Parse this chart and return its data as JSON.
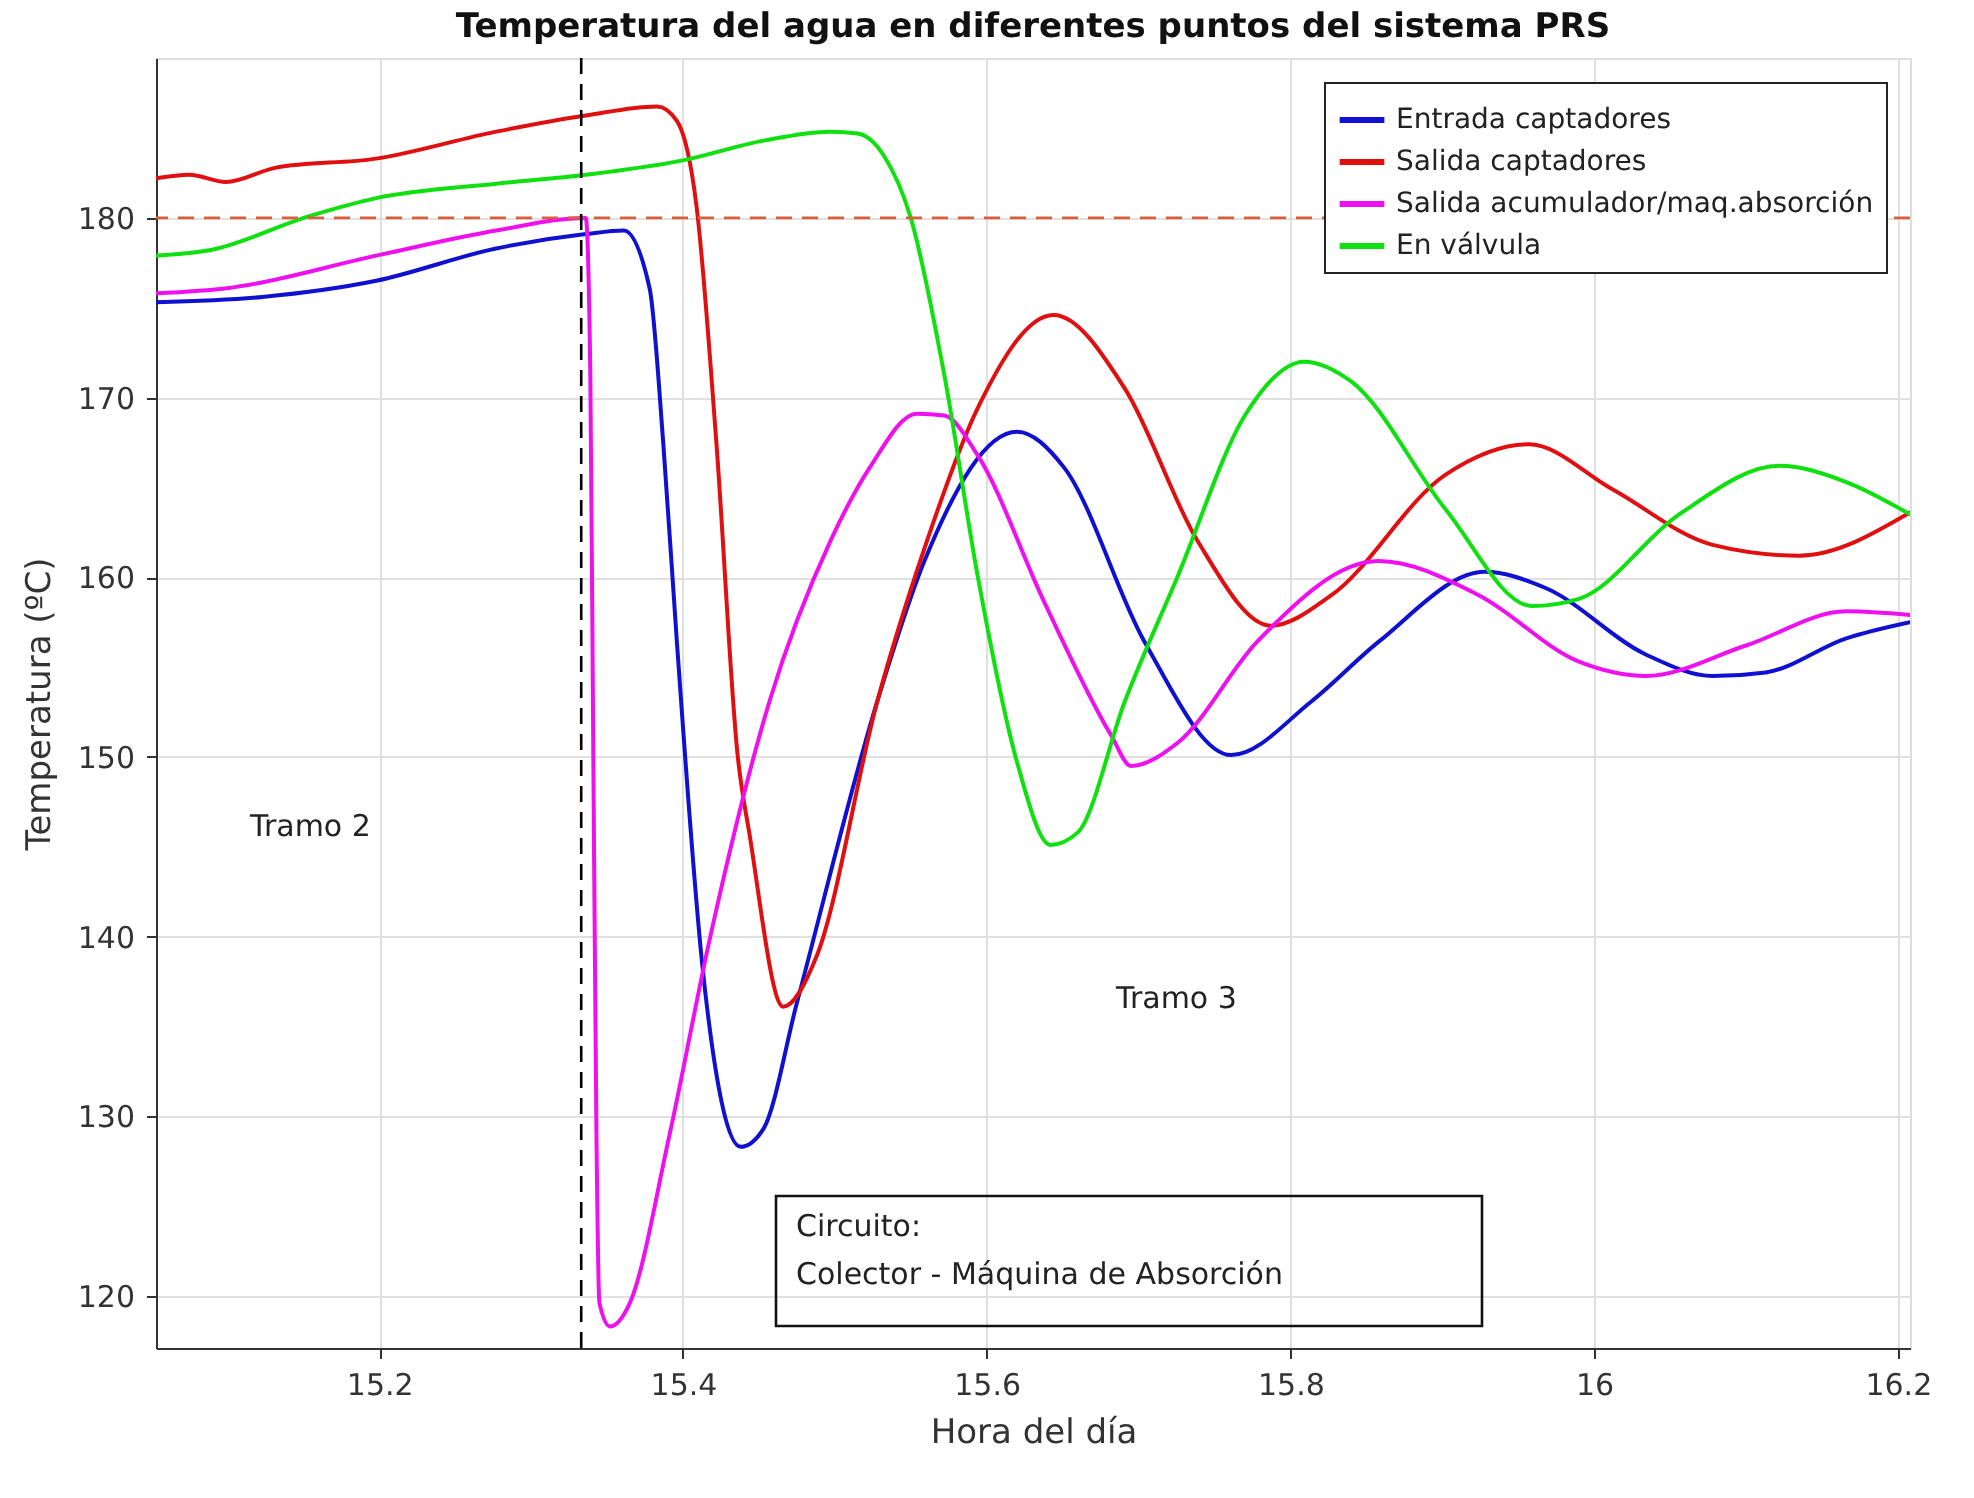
{
  "chart_data": {
    "type": "line",
    "title": "Temperatura del agua en diferentes puntos del sistema PRS",
    "xlabel": "Hora del día",
    "ylabel": "Temperatura (ºC)",
    "xlim": [
      15.053,
      16.208
    ],
    "ylim": [
      117.1,
      188.9
    ],
    "xticks": [
      15.2,
      15.4,
      15.6,
      15.8,
      16,
      16.2
    ],
    "yticks": [
      120,
      130,
      140,
      150,
      160,
      170,
      180
    ],
    "grid": true,
    "legend": "top right",
    "line_style": "solid",
    "marker": "none",
    "series": [
      {
        "name": "Entrada captadores",
        "color": "#1010d0",
        "x": [
          15.053,
          15.123,
          15.198,
          15.277,
          15.336,
          15.361,
          15.378,
          15.387,
          15.396,
          15.413,
          15.438,
          15.453,
          15.475,
          15.528,
          15.559,
          15.62,
          15.651,
          15.704,
          15.761,
          15.814,
          15.858,
          15.928,
          15.968,
          16.034,
          16.078,
          16.113,
          16.166,
          16.208
        ],
        "values": [
          175.3,
          175.6,
          176.5,
          178.3,
          179.1,
          179.3,
          176.1,
          167.5,
          156.4,
          138.2,
          128.3,
          129.3,
          136.3,
          153.1,
          160.9,
          168.1,
          166.1,
          156.4,
          150.1,
          153.1,
          156.4,
          160.3,
          159.4,
          155.7,
          154.5,
          154.7,
          156.6,
          157.5
        ]
      },
      {
        "name": "Salida captadores",
        "color": "#e01010",
        "x": [
          15.053,
          15.075,
          15.099,
          15.132,
          15.198,
          15.277,
          15.336,
          15.383,
          15.396,
          15.409,
          15.422,
          15.436,
          15.444,
          15.466,
          15.488,
          15.528,
          15.559,
          15.594,
          15.644,
          15.691,
          15.739,
          15.787,
          15.827,
          15.902,
          15.957,
          16.012,
          16.078,
          16.135,
          16.208
        ],
        "values": [
          182.2,
          182.4,
          182.0,
          182.8,
          183.3,
          184.8,
          185.7,
          186.2,
          185.4,
          180.6,
          167.5,
          150.1,
          145.6,
          136.1,
          138.9,
          153.1,
          161.6,
          169.4,
          174.6,
          170.5,
          162.0,
          157.3,
          159.0,
          165.7,
          167.4,
          164.9,
          161.8,
          161.2,
          163.6
        ]
      },
      {
        "name": "Salida acumulador/maq.absorción",
        "color": "#ee10ee",
        "x": [
          15.053,
          15.101,
          15.198,
          15.277,
          15.336,
          15.339,
          15.341,
          15.343,
          15.345,
          15.352,
          15.365,
          15.391,
          15.418,
          15.457,
          15.497,
          15.523,
          15.554,
          15.572,
          15.594,
          15.638,
          15.682,
          15.695,
          15.726,
          15.778,
          15.858,
          15.924,
          15.99,
          16.034,
          16.1,
          16.166,
          16.208
        ],
        "values": [
          175.8,
          176.1,
          177.9,
          179.3,
          180.0,
          171.3,
          149.7,
          129.3,
          119.6,
          118.3,
          119.6,
          128.9,
          140.0,
          153.1,
          162.0,
          166.1,
          169.1,
          169.0,
          166.8,
          158.6,
          151.2,
          149.5,
          150.8,
          156.4,
          160.9,
          159.0,
          155.3,
          154.5,
          156.2,
          158.1,
          157.9
        ]
      },
      {
        "name": "En válvula",
        "color": "#10e010",
        "x": [
          15.053,
          15.088,
          15.154,
          15.198,
          15.277,
          15.336,
          15.4,
          15.453,
          15.497,
          15.515,
          15.532,
          15.55,
          15.572,
          15.594,
          15.62,
          15.642,
          15.66,
          15.691,
          15.726,
          15.77,
          15.809,
          15.84,
          15.902,
          15.959,
          15.99,
          16.056,
          16.122,
          16.166,
          16.208
        ],
        "values": [
          177.9,
          178.2,
          180.1,
          181.1,
          181.9,
          182.4,
          183.2,
          184.3,
          184.8,
          184.7,
          183.5,
          180.0,
          171.3,
          160.1,
          149.7,
          145.1,
          145.8,
          153.1,
          160.1,
          169.0,
          172.0,
          170.9,
          163.8,
          158.4,
          158.8,
          163.5,
          166.2,
          165.3,
          163.5
        ]
      }
    ],
    "ref_lines": [
      {
        "axis": "y",
        "value": 180,
        "color": "#d9603b",
        "line_style": "dashed"
      },
      {
        "axis": "x",
        "value": 15.333,
        "color": "#000000",
        "line_style": "dashed"
      }
    ],
    "annotations": [
      "Tramo 2",
      "Tramo 3",
      "Circuito:\nColector - Máquina de Absorción"
    ]
  }
}
